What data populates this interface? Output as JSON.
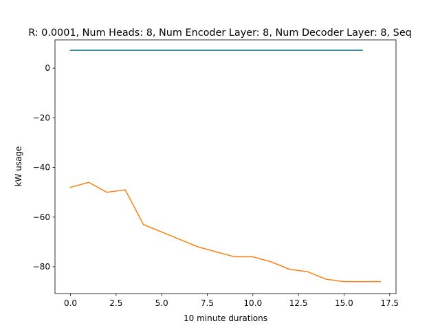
{
  "chart_data": {
    "type": "line",
    "title": "R: 0.0001, Num Heads: 8, Num Encoder Layer: 8, Num Decoder Layer: 8, Seq",
    "xlabel": "10 minute durations",
    "ylabel": "kW usage",
    "xlim": [
      -0.85,
      17.85
    ],
    "ylim": [
      -90.8,
      11.4
    ],
    "xticks": [
      0.0,
      2.5,
      5.0,
      7.5,
      10.0,
      12.5,
      15.0,
      17.5
    ],
    "xtick_labels": [
      "0.0",
      "2.5",
      "5.0",
      "7.5",
      "10.0",
      "12.5",
      "15.0",
      "17.5"
    ],
    "yticks": [
      0,
      -20,
      -40,
      -60,
      -80
    ],
    "ytick_labels": [
      "0",
      "−20",
      "−40",
      "−60",
      "−80"
    ],
    "grid": false,
    "series": [
      {
        "color": "#1f77b4",
        "overlay_color": "#2a8a90",
        "x": [
          0,
          1,
          2,
          3,
          4,
          5,
          6,
          7,
          8,
          9,
          10,
          11,
          12,
          13,
          14,
          15,
          16
        ],
        "y": [
          7.2,
          7.2,
          7.2,
          7.2,
          7.2,
          7.2,
          7.2,
          7.2,
          7.2,
          7.2,
          7.2,
          7.2,
          7.2,
          7.2,
          7.2,
          7.2,
          7.2
        ]
      },
      {
        "color": "#ff7f0e",
        "x": [
          0,
          1,
          2,
          3,
          4,
          5,
          6,
          7,
          8,
          9,
          10,
          11,
          12,
          13,
          14,
          15,
          16,
          17
        ],
        "y": [
          -48,
          -46,
          -50,
          -49,
          -63,
          -66,
          -69,
          -72,
          -74,
          -76,
          -76,
          -78,
          -81,
          -82,
          -85,
          -86,
          -86,
          -86
        ]
      }
    ]
  }
}
